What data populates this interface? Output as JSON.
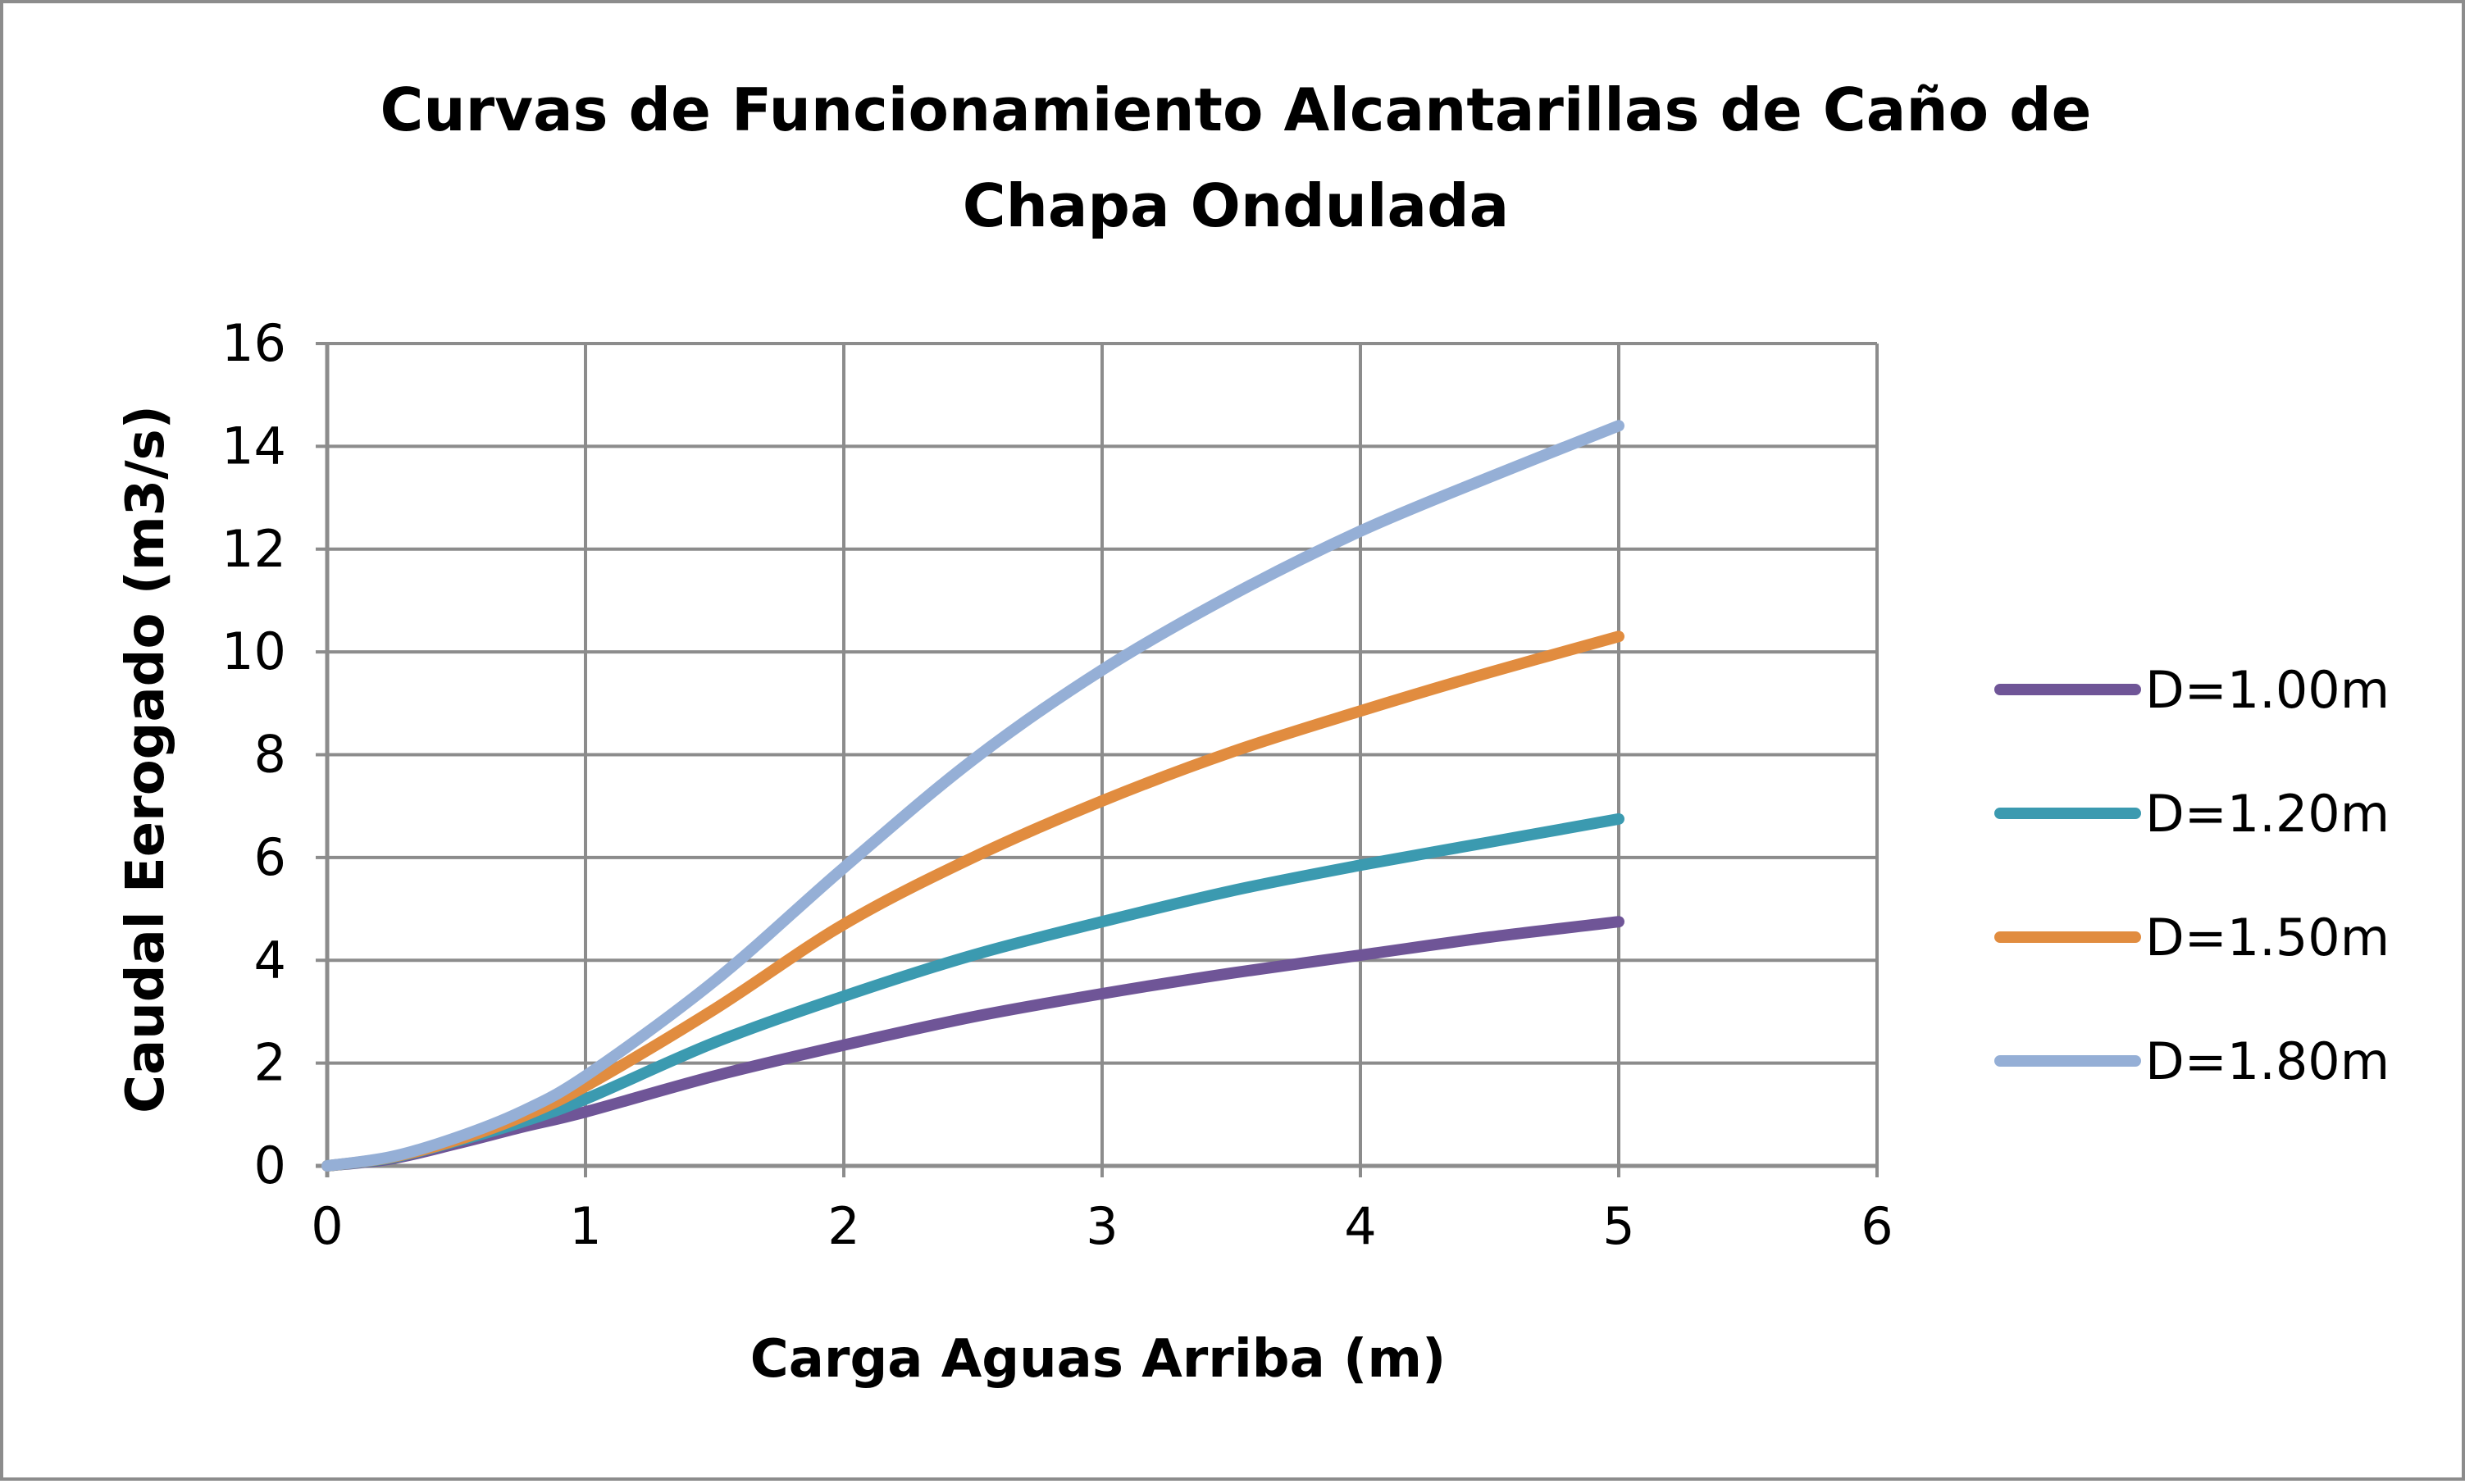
{
  "chart_data": {
    "type": "line",
    "title_lines": [
      "Curvas de Funcionamiento Alcantarillas de Caño de",
      "Chapa Ondulada"
    ],
    "xlabel": "Carga Aguas Arriba (m)",
    "ylabel": "Caudal Eerogado (m3/s)",
    "xlim": [
      0,
      6
    ],
    "ylim": [
      0,
      16
    ],
    "xticks": [
      0,
      1,
      2,
      3,
      4,
      5,
      6
    ],
    "yticks": [
      0,
      2,
      4,
      6,
      8,
      10,
      12,
      14,
      16
    ],
    "grid": true,
    "legend_position": "right",
    "x": [
      0,
      0.25,
      0.5,
      0.75,
      1,
      1.5,
      2,
      2.5,
      3,
      3.5,
      4,
      4.5,
      5
    ],
    "series": [
      {
        "name": "D=1.00m",
        "color": "#6f5597",
        "values": [
          0,
          0.14,
          0.43,
          0.75,
          1.05,
          1.75,
          2.35,
          2.9,
          3.35,
          3.75,
          4.1,
          4.45,
          4.75
        ]
      },
      {
        "name": "D=1.20m",
        "color": "#3b9ab0",
        "values": [
          0,
          0.16,
          0.48,
          0.85,
          1.3,
          2.4,
          3.3,
          4.1,
          4.75,
          5.35,
          5.85,
          6.3,
          6.75
        ]
      },
      {
        "name": "D=1.50m",
        "color": "#e18c3f",
        "values": [
          0,
          0.17,
          0.5,
          0.95,
          1.55,
          3.05,
          4.7,
          6.0,
          7.1,
          8.05,
          8.85,
          9.6,
          10.3
        ]
      },
      {
        "name": "D=1.80m",
        "color": "#95afd6",
        "values": [
          0,
          0.18,
          0.55,
          1.05,
          1.75,
          3.6,
          5.8,
          7.9,
          9.65,
          11.1,
          12.35,
          13.4,
          14.4
        ]
      }
    ]
  }
}
